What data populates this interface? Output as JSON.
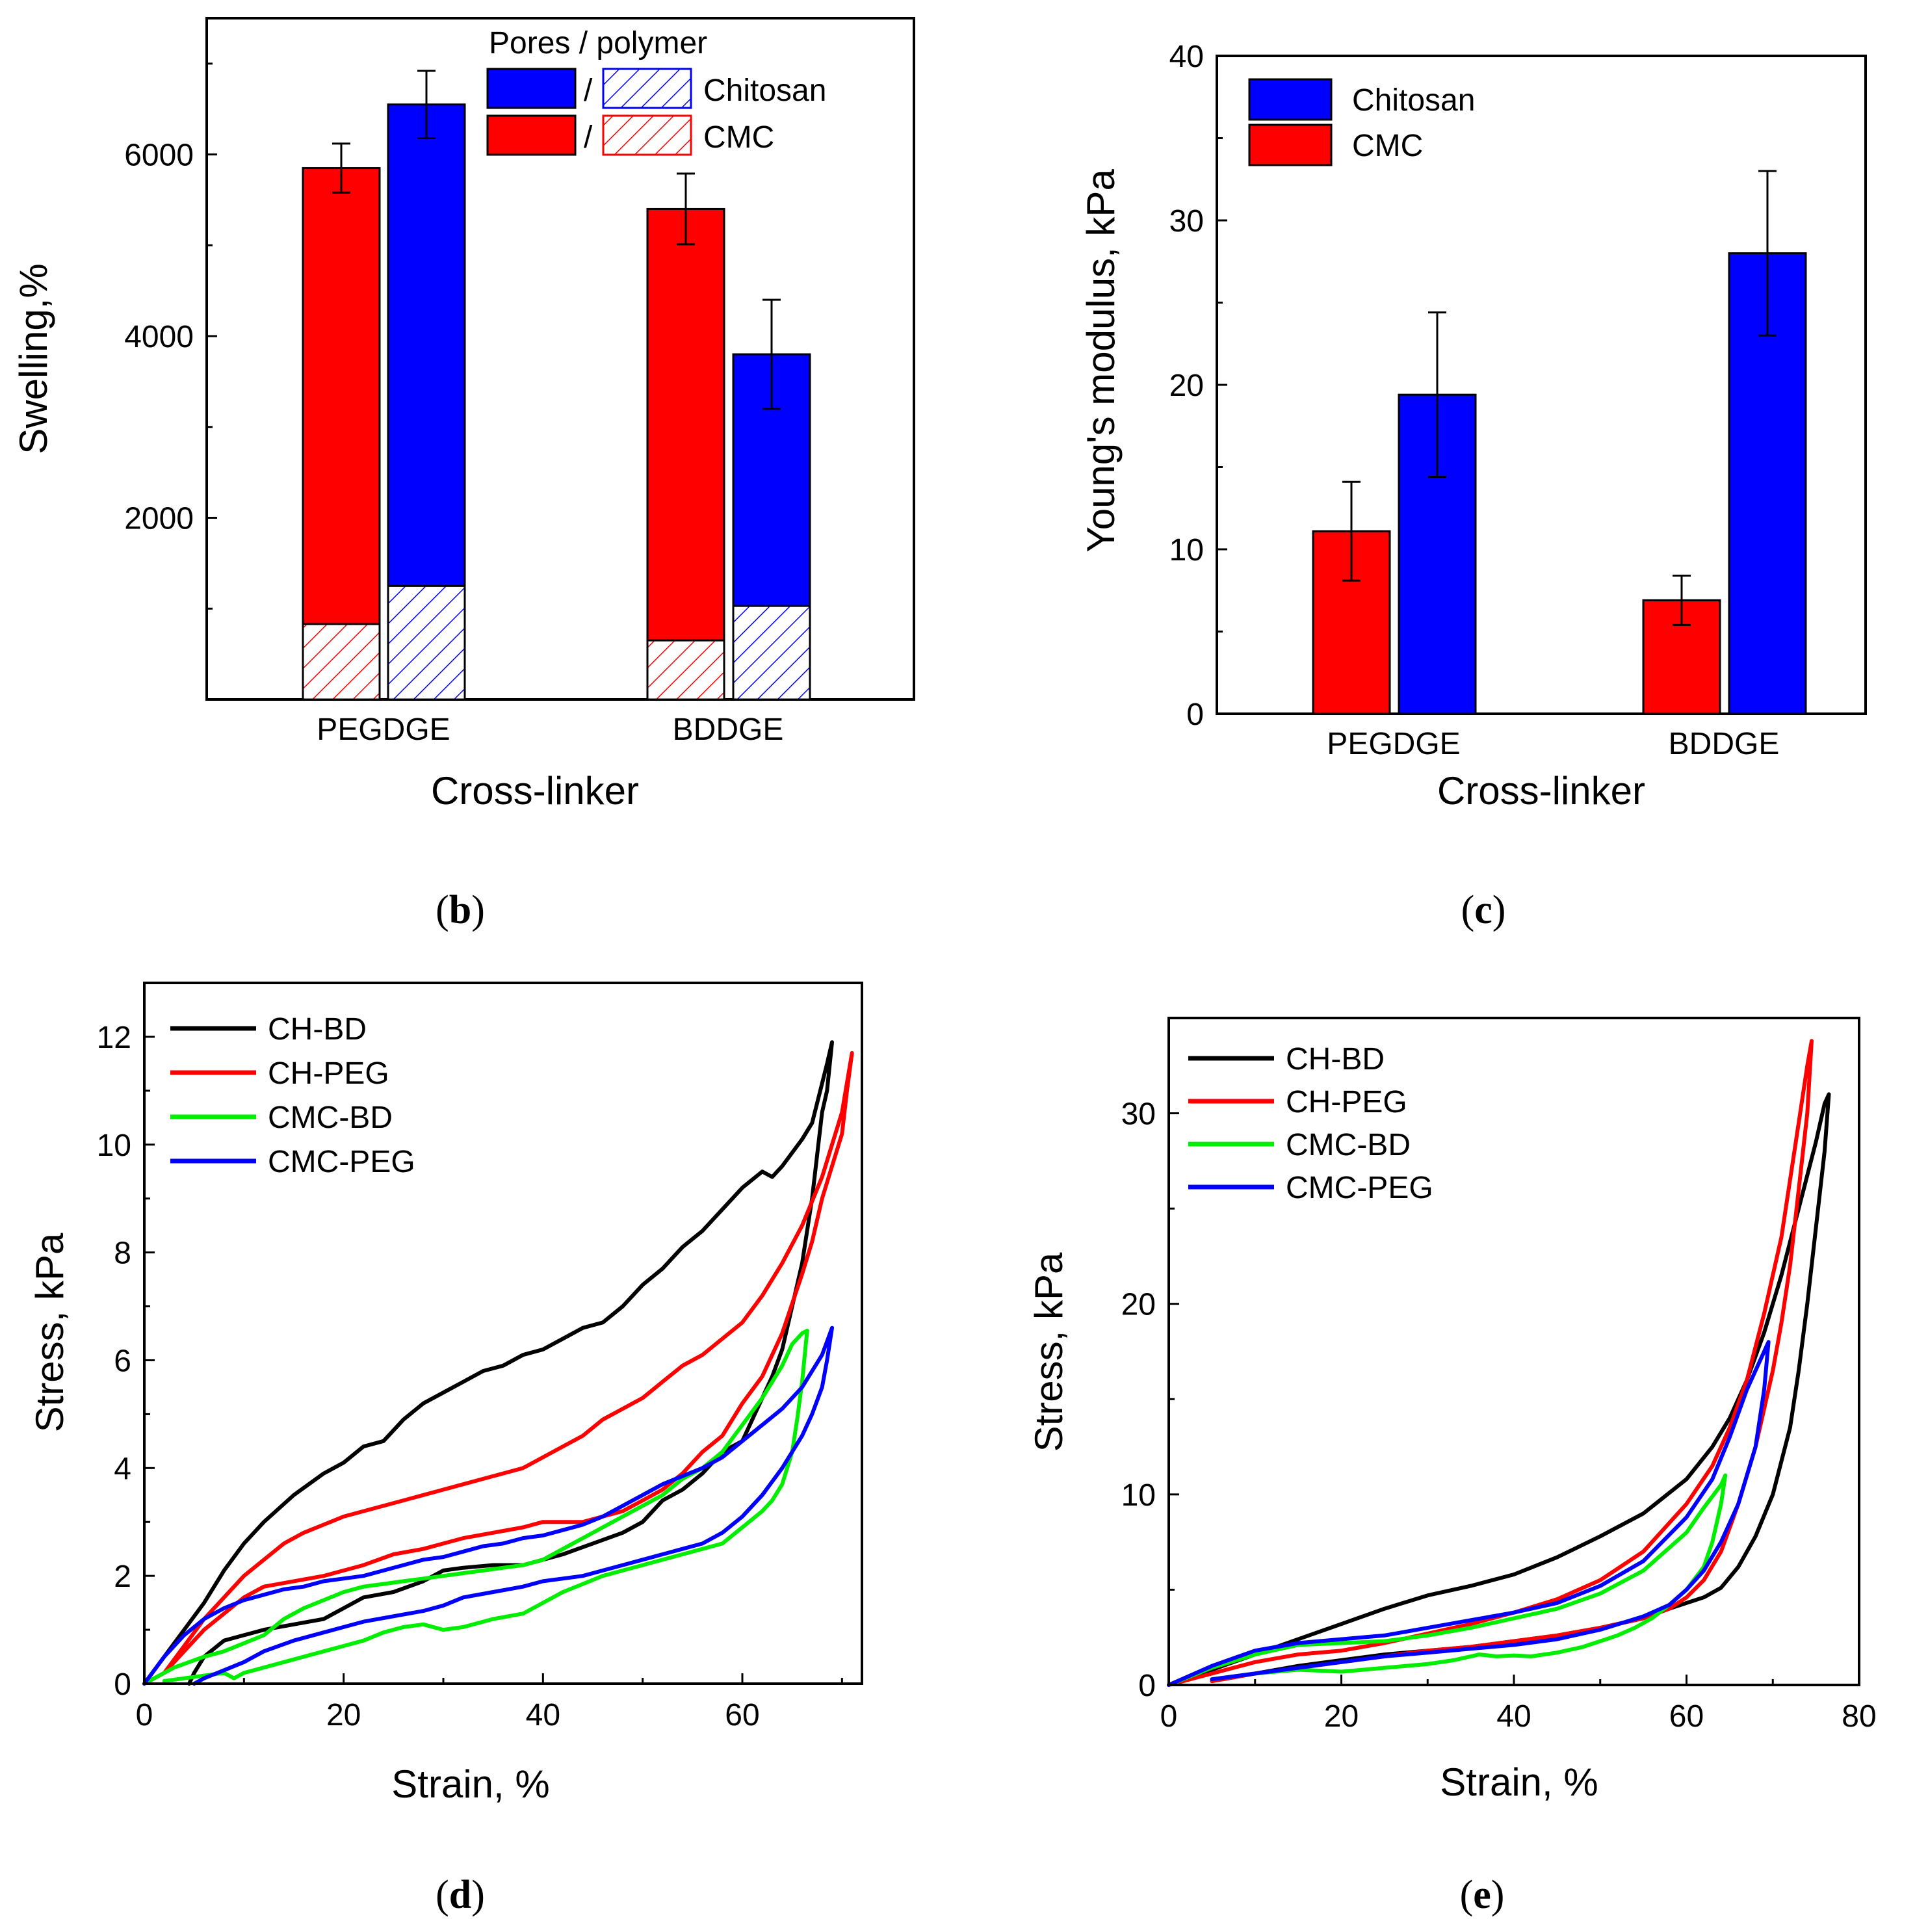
{
  "colors": {
    "cmc": "#ff0000",
    "chitosan": "#0000ff",
    "ch_bd": "#000000",
    "ch_peg": "#ff0000",
    "cmc_bd": "#00ee00",
    "cmc_peg": "#0000ff"
  },
  "panel_labels": {
    "b": "b",
    "c": "c",
    "d": "d",
    "e": "e",
    "open": "(",
    "close": ")"
  },
  "chart_data": [
    {
      "id": "b",
      "type": "bar",
      "xlabel": "Cross-linker",
      "ylabel": "Swelling,%",
      "categories": [
        "PEGDGE",
        "BDDGE"
      ],
      "ylim": [
        0,
        7500
      ],
      "yticks": [
        2000,
        4000,
        6000
      ],
      "series": [
        {
          "name": "CMC",
          "values": [
            5850,
            5400
          ],
          "errors": [
            270,
            390
          ],
          "polymer_values": [
            830,
            650
          ]
        },
        {
          "name": "Chitosan",
          "values": [
            6550,
            3800
          ],
          "errors": [
            370,
            600
          ],
          "polymer_values": [
            1250,
            1030
          ]
        }
      ],
      "legend": {
        "title": "Pores / polymer",
        "separator": "/",
        "entries": [
          "Chitosan",
          "CMC"
        ],
        "position": "top-right"
      }
    },
    {
      "id": "c",
      "type": "bar",
      "xlabel": "Cross-linker",
      "ylabel": "Young's modulus, kPa",
      "categories": [
        "PEGDGE",
        "BDDGE"
      ],
      "ylim": [
        0,
        40
      ],
      "yticks": [
        0,
        10,
        20,
        30,
        40
      ],
      "series": [
        {
          "name": "CMC",
          "values": [
            11.1,
            6.9
          ],
          "errors": [
            3.0,
            1.5
          ]
        },
        {
          "name": "Chitosan",
          "values": [
            19.4,
            28.0
          ],
          "errors": [
            5.0,
            5.0
          ]
        }
      ],
      "legend": {
        "entries": [
          "Chitosan",
          "CMC"
        ],
        "position": "top-left"
      }
    },
    {
      "id": "d",
      "type": "line",
      "xlabel": "Strain, %",
      "ylabel": "Stress, kPa",
      "xlim": [
        0,
        72
      ],
      "ylim": [
        0,
        13
      ],
      "xticks": [
        0,
        20,
        40,
        60
      ],
      "yticks": [
        0,
        2,
        4,
        6,
        8,
        10,
        12
      ],
      "legend": {
        "position": "top-left"
      },
      "series": [
        {
          "name": "CH-BD",
          "x": [
            0,
            2,
            4,
            6,
            8,
            10,
            12,
            15,
            18,
            20,
            22,
            24,
            25,
            26,
            28,
            30,
            32,
            34,
            36,
            38,
            40,
            42,
            44,
            46,
            48,
            50,
            52,
            54,
            56,
            58,
            60,
            62,
            63,
            64,
            66,
            67,
            68.5,
            69,
            68.5,
            68,
            67,
            66,
            65,
            64,
            63,
            62,
            61,
            60,
            58,
            56,
            54,
            52,
            50,
            48,
            45,
            42,
            40,
            38,
            35,
            32,
            30,
            28,
            25,
            22,
            20,
            18,
            15,
            12,
            10,
            8,
            6,
            5,
            4.5
          ],
          "y": [
            0,
            0.5,
            1.0,
            1.5,
            2.1,
            2.6,
            3.0,
            3.5,
            3.9,
            4.1,
            4.4,
            4.5,
            4.7,
            4.9,
            5.2,
            5.4,
            5.6,
            5.8,
            5.9,
            6.1,
            6.2,
            6.4,
            6.6,
            6.7,
            7.0,
            7.4,
            7.7,
            8.1,
            8.4,
            8.8,
            9.2,
            9.5,
            9.4,
            9.6,
            10.1,
            10.4,
            11.5,
            11.9,
            11.0,
            10.6,
            9.0,
            7.8,
            7.0,
            6.2,
            5.7,
            5.3,
            4.9,
            4.5,
            4.3,
            3.9,
            3.6,
            3.4,
            3.0,
            2.8,
            2.6,
            2.4,
            2.3,
            2.2,
            2.2,
            2.15,
            2.1,
            1.9,
            1.7,
            1.6,
            1.4,
            1.2,
            1.1,
            1.0,
            0.9,
            0.8,
            0.5,
            0.2,
            0
          ]
        },
        {
          "name": "CH-PEG",
          "x": [
            0,
            2,
            4,
            6,
            8,
            10,
            12,
            14,
            16,
            18,
            20,
            22,
            24,
            26,
            28,
            30,
            32,
            34,
            36,
            38,
            40,
            42,
            44,
            46,
            48,
            50,
            52,
            54,
            56,
            58,
            60,
            62,
            64,
            66,
            68,
            70,
            71,
            70.5,
            70,
            69,
            68,
            67,
            66,
            64,
            62,
            60,
            58,
            56,
            54,
            52,
            50,
            48,
            46,
            44,
            42,
            40,
            38,
            35,
            32,
            30,
            28,
            25,
            22,
            20,
            18,
            15,
            12,
            10,
            8,
            6,
            4,
            2
          ],
          "y": [
            0,
            0.2,
            0.7,
            1.2,
            1.6,
            2.0,
            2.3,
            2.6,
            2.8,
            2.95,
            3.1,
            3.2,
            3.3,
            3.4,
            3.5,
            3.6,
            3.7,
            3.8,
            3.9,
            4.0,
            4.2,
            4.4,
            4.6,
            4.9,
            5.1,
            5.3,
            5.6,
            5.9,
            6.1,
            6.4,
            6.7,
            7.2,
            7.8,
            8.5,
            9.4,
            10.6,
            11.7,
            11.0,
            10.2,
            9.6,
            9.0,
            8.2,
            7.6,
            6.5,
            5.7,
            5.2,
            4.6,
            4.3,
            3.9,
            3.6,
            3.4,
            3.2,
            3.1,
            3.0,
            3.0,
            3.0,
            2.9,
            2.8,
            2.7,
            2.6,
            2.5,
            2.4,
            2.2,
            2.1,
            2.0,
            1.9,
            1.8,
            1.6,
            1.3,
            1.0,
            0.6,
            0.2
          ]
        },
        {
          "name": "CMC-BD",
          "x": [
            0,
            3,
            6,
            8,
            10,
            12,
            14,
            16,
            18,
            20,
            22,
            24,
            26,
            28,
            30,
            32,
            34,
            36,
            38,
            40,
            42,
            44,
            46,
            48,
            50,
            52,
            54,
            56,
            58,
            60,
            62,
            64,
            65,
            66,
            66.5,
            66,
            65.5,
            65,
            64,
            63,
            62,
            60,
            58,
            56,
            54,
            52,
            50,
            48,
            46,
            44,
            42,
            40,
            38,
            35,
            32,
            30,
            28,
            26,
            24,
            22,
            20,
            18,
            16,
            14,
            12,
            10,
            9,
            8,
            6,
            4,
            2
          ],
          "y": [
            0,
            0.3,
            0.5,
            0.6,
            0.75,
            0.9,
            1.2,
            1.4,
            1.55,
            1.7,
            1.8,
            1.85,
            1.9,
            1.95,
            2.0,
            2.05,
            2.1,
            2.15,
            2.2,
            2.3,
            2.5,
            2.7,
            2.9,
            3.1,
            3.3,
            3.5,
            3.8,
            4.0,
            4.3,
            4.8,
            5.3,
            5.9,
            6.3,
            6.5,
            6.55,
            5.6,
            4.9,
            4.3,
            3.7,
            3.4,
            3.2,
            2.9,
            2.6,
            2.5,
            2.4,
            2.3,
            2.2,
            2.1,
            2.0,
            1.85,
            1.7,
            1.5,
            1.3,
            1.2,
            1.05,
            1.0,
            1.1,
            1.05,
            0.95,
            0.8,
            0.7,
            0.6,
            0.5,
            0.4,
            0.3,
            0.2,
            0.1,
            0.2,
            0.15,
            0.1,
            0.05
          ]
        },
        {
          "name": "CMC-PEG",
          "x": [
            0,
            2,
            4,
            6,
            8,
            10,
            12,
            14,
            16,
            18,
            20,
            22,
            24,
            26,
            28,
            30,
            32,
            34,
            36,
            38,
            40,
            42,
            44,
            46,
            48,
            50,
            52,
            54,
            56,
            58,
            60,
            62,
            64,
            66,
            68,
            69,
            68.5,
            68,
            67,
            66,
            64,
            62,
            60,
            58,
            56,
            54,
            52,
            50,
            48,
            46,
            44,
            42,
            40,
            38,
            35,
            32,
            30,
            28,
            25,
            22,
            20,
            18,
            15,
            12,
            10,
            8,
            6,
            5
          ],
          "y": [
            0,
            0.5,
            0.9,
            1.2,
            1.4,
            1.55,
            1.65,
            1.75,
            1.8,
            1.9,
            1.95,
            2.0,
            2.1,
            2.2,
            2.3,
            2.35,
            2.45,
            2.55,
            2.6,
            2.7,
            2.75,
            2.85,
            2.95,
            3.1,
            3.3,
            3.5,
            3.7,
            3.85,
            4.0,
            4.2,
            4.5,
            4.8,
            5.1,
            5.5,
            6.1,
            6.6,
            6.0,
            5.5,
            5.0,
            4.6,
            4.0,
            3.5,
            3.1,
            2.8,
            2.6,
            2.5,
            2.4,
            2.3,
            2.2,
            2.1,
            2.0,
            1.95,
            1.9,
            1.8,
            1.7,
            1.6,
            1.45,
            1.35,
            1.25,
            1.15,
            1.05,
            0.95,
            0.8,
            0.6,
            0.4,
            0.25,
            0.1,
            0
          ]
        }
      ]
    },
    {
      "id": "e",
      "type": "line",
      "xlabel": "Strain, %",
      "ylabel": "Stress, kPa",
      "xlim": [
        0,
        80
      ],
      "ylim": [
        0,
        35
      ],
      "xticks": [
        0,
        20,
        40,
        60,
        80
      ],
      "yticks": [
        0,
        10,
        20,
        30
      ],
      "legend": {
        "position": "top-left"
      },
      "series": [
        {
          "name": "CH-BD",
          "x": [
            0,
            5,
            10,
            15,
            20,
            25,
            30,
            35,
            40,
            45,
            50,
            55,
            60,
            63,
            65,
            67,
            69,
            71,
            73,
            75,
            76,
            76.5,
            76,
            75,
            74,
            73,
            72,
            70,
            68,
            66,
            64,
            62,
            60,
            58,
            55,
            50,
            45,
            40,
            35,
            30,
            25,
            20,
            15,
            10,
            5
          ],
          "y": [
            0,
            0.8,
            1.6,
            2.4,
            3.2,
            4.0,
            4.7,
            5.2,
            5.8,
            6.7,
            7.8,
            9.0,
            10.8,
            12.5,
            14.0,
            16.0,
            18.5,
            21.5,
            25.0,
            28.5,
            30.5,
            31.0,
            28.0,
            24.0,
            20.0,
            16.5,
            13.5,
            10.0,
            7.8,
            6.2,
            5.1,
            4.6,
            4.3,
            4.0,
            3.5,
            3.0,
            2.6,
            2.3,
            2.0,
            1.8,
            1.6,
            1.3,
            1.0,
            0.6,
            0.2
          ]
        },
        {
          "name": "CH-PEG",
          "x": [
            0,
            5,
            10,
            15,
            20,
            25,
            30,
            35,
            40,
            45,
            50,
            55,
            60,
            63,
            65,
            67,
            69,
            71,
            72,
            73,
            74,
            74.5,
            74,
            73,
            72,
            71,
            70,
            68,
            66,
            64,
            62,
            60,
            58,
            55,
            50,
            45,
            40,
            35,
            30,
            25,
            20,
            15,
            10,
            5
          ],
          "y": [
            0,
            0.6,
            1.2,
            1.6,
            1.8,
            2.2,
            2.7,
            3.2,
            3.8,
            4.5,
            5.5,
            7.0,
            9.5,
            11.5,
            13.5,
            16.0,
            19.5,
            23.5,
            26.5,
            29.5,
            32.5,
            33.8,
            30.0,
            26.0,
            22.0,
            19.0,
            16.5,
            12.5,
            9.5,
            7.0,
            5.5,
            4.6,
            4.0,
            3.5,
            3.0,
            2.6,
            2.3,
            2.0,
            1.8,
            1.5,
            1.2,
            0.9,
            0.6,
            0.2
          ]
        },
        {
          "name": "CMC-BD",
          "x": [
            0,
            5,
            10,
            15,
            20,
            25,
            30,
            35,
            40,
            45,
            50,
            55,
            60,
            62,
            64,
            64.5,
            64,
            63,
            62,
            60,
            58,
            56,
            54,
            52,
            50,
            48,
            45,
            42,
            40,
            38,
            36,
            33,
            30,
            25,
            20,
            15,
            10,
            5
          ],
          "y": [
            0,
            0.9,
            1.6,
            2.1,
            2.2,
            2.3,
            2.6,
            3.0,
            3.5,
            4.0,
            4.8,
            6.0,
            8.0,
            9.3,
            10.5,
            11.0,
            9.5,
            7.5,
            6.2,
            5.0,
            4.2,
            3.5,
            3.0,
            2.6,
            2.3,
            2.0,
            1.7,
            1.5,
            1.55,
            1.5,
            1.6,
            1.3,
            1.1,
            0.9,
            0.7,
            0.8,
            0.6,
            0.3
          ]
        },
        {
          "name": "CMC-PEG",
          "x": [
            0,
            5,
            10,
            15,
            20,
            25,
            30,
            35,
            40,
            45,
            50,
            55,
            60,
            63,
            65,
            67,
            69,
            69.5,
            69,
            68,
            66,
            64,
            62,
            60,
            58,
            55,
            50,
            45,
            40,
            35,
            30,
            25,
            20,
            15,
            10,
            5
          ],
          "y": [
            0,
            1.0,
            1.8,
            2.2,
            2.4,
            2.6,
            3.0,
            3.4,
            3.8,
            4.3,
            5.2,
            6.5,
            8.8,
            10.8,
            13.0,
            15.5,
            17.5,
            18.0,
            15.5,
            12.5,
            9.5,
            7.5,
            6.0,
            5.0,
            4.2,
            3.6,
            2.9,
            2.4,
            2.1,
            1.9,
            1.7,
            1.5,
            1.2,
            0.9,
            0.6,
            0.3
          ]
        }
      ]
    }
  ]
}
